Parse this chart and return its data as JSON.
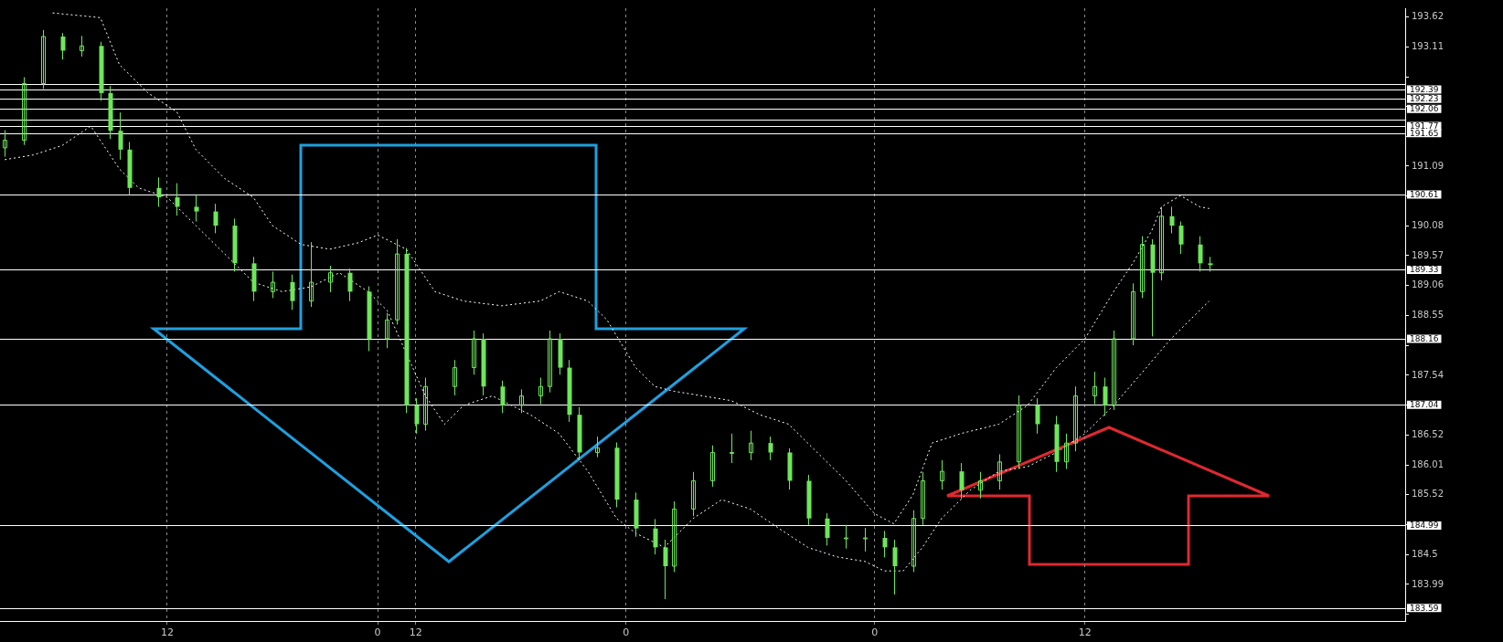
{
  "chart_data": {
    "type": "candlestick",
    "color": "#6ee65a",
    "categories": [
      null,
      null,
      null,
      null,
      null,
      null,
      null,
      null,
      null,
      null,
      null,
      null,
      null,
      null,
      null,
      null,
      null,
      "12",
      null,
      null,
      null,
      null,
      null,
      null,
      null,
      null,
      null,
      null,
      null,
      null,
      null,
      null,
      null,
      null,
      null,
      null,
      null,
      null,
      null,
      "0",
      null,
      null,
      null,
      "12",
      null,
      null,
      null,
      null,
      null,
      null,
      null,
      null,
      null,
      null,
      null,
      null,
      null,
      null,
      null,
      null,
      null,
      null,
      null,
      null,
      null,
      "0",
      null,
      null,
      null,
      null,
      null,
      null,
      null,
      null,
      null,
      null,
      null,
      null,
      null,
      null,
      null,
      null,
      null,
      null,
      null,
      null,
      null,
      null,
      null,
      null,
      null,
      "0",
      null,
      null,
      null,
      null,
      null,
      null,
      null,
      null,
      null,
      null,
      null,
      null,
      null,
      null,
      null,
      null,
      null,
      null,
      null,
      null,
      null,
      "12",
      null,
      null,
      null,
      null,
      null,
      null,
      null,
      null,
      null,
      null,
      null,
      null,
      null,
      null,
      null,
      null,
      null,
      null,
      null,
      null,
      null,
      null,
      null,
      null,
      null,
      null,
      null,
      null,
      null,
      null,
      null,
      null,
      null
    ],
    "ohlc": [
      [
        191.4,
        191.7,
        191.25,
        191.53
      ],
      null,
      [
        191.53,
        192.6,
        191.45,
        192.49
      ],
      null,
      [
        192.49,
        193.4,
        192.4,
        193.29
      ],
      null,
      [
        193.29,
        193.35,
        192.9,
        193.05
      ],
      null,
      [
        193.05,
        193.3,
        192.95,
        193.13
      ],
      null,
      [
        193.13,
        193.2,
        192.2,
        192.33
      ],
      [
        192.33,
        192.45,
        191.55,
        191.69
      ],
      [
        191.69,
        192,
        191.2,
        191.37
      ],
      [
        191.37,
        191.5,
        190.6,
        190.72
      ],
      null,
      null,
      [
        190.72,
        190.9,
        190.4,
        190.56
      ],
      null,
      [
        190.56,
        190.8,
        190.25,
        190.4
      ],
      null,
      [
        190.4,
        190.6,
        190.15,
        190.32
      ],
      null,
      [
        190.32,
        190.45,
        189.95,
        190.08
      ],
      null,
      [
        190.08,
        190.2,
        189.3,
        189.44
      ],
      null,
      [
        189.44,
        189.55,
        188.8,
        188.96
      ],
      null,
      [
        188.96,
        189.3,
        188.85,
        189.12
      ],
      null,
      [
        189.12,
        189.25,
        188.65,
        188.8
      ],
      null,
      [
        188.8,
        189.8,
        188.7,
        189.12
      ],
      null,
      [
        189.12,
        189.4,
        188.95,
        189.28
      ],
      null,
      [
        189.28,
        189.35,
        188.8,
        188.96
      ],
      null,
      [
        188.96,
        189.05,
        187.95,
        188.16
      ],
      null,
      [
        188.16,
        188.6,
        188,
        188.48
      ],
      [
        188.48,
        189.85,
        188.4,
        189.6
      ],
      [
        189.6,
        189.7,
        186.9,
        187.03
      ],
      [
        187.03,
        187.15,
        186.55,
        186.71
      ],
      [
        186.71,
        187.5,
        186.6,
        187.35
      ],
      null,
      null,
      [
        187.35,
        187.8,
        187.2,
        187.67
      ],
      null,
      [
        187.67,
        188.3,
        187.55,
        188.16
      ],
      [
        188.16,
        188.25,
        187.2,
        187.35
      ],
      null,
      [
        187.35,
        187.45,
        186.9,
        187.03
      ],
      null,
      [
        187.03,
        187.3,
        186.9,
        187.19
      ],
      null,
      [
        187.19,
        187.5,
        187.05,
        187.35
      ],
      [
        187.35,
        188.3,
        187.25,
        188.16
      ],
      [
        188.16,
        188.25,
        187.55,
        187.67
      ],
      [
        187.67,
        187.8,
        186.75,
        186.87
      ],
      [
        186.87,
        187,
        186.1,
        186.23
      ],
      null,
      [
        186.23,
        186.5,
        186.15,
        186.31
      ],
      null,
      [
        186.31,
        186.4,
        185.3,
        185.43
      ],
      null,
      [
        185.43,
        185.55,
        184.8,
        184.94
      ],
      null,
      [
        184.94,
        185.1,
        184.5,
        184.62
      ],
      [
        184.62,
        184.75,
        183.74,
        184.3
      ],
      [
        184.3,
        185.4,
        184.2,
        185.27
      ],
      null,
      [
        185.27,
        185.9,
        185.15,
        185.75
      ],
      null,
      [
        185.75,
        186.35,
        185.65,
        186.23
      ],
      null,
      [
        186.23,
        186.55,
        186.05,
        186.23
      ],
      null,
      [
        186.23,
        186.6,
        186.1,
        186.39
      ],
      null,
      [
        186.39,
        186.5,
        186.1,
        186.23
      ],
      null,
      [
        186.23,
        186.3,
        185.6,
        185.75
      ],
      null,
      [
        185.75,
        185.85,
        185,
        185.11
      ],
      null,
      [
        185.11,
        185.2,
        184.65,
        184.78
      ],
      null,
      [
        184.78,
        185,
        184.6,
        184.78
      ],
      null,
      [
        184.78,
        184.95,
        184.55,
        184.78
      ],
      null,
      [
        184.78,
        184.9,
        184.45,
        184.62
      ],
      [
        184.62,
        184.75,
        183.82,
        184.3
      ],
      null,
      [
        184.3,
        185.25,
        184.2,
        185.11
      ],
      [
        185.11,
        185.9,
        185,
        185.75
      ],
      null,
      [
        185.75,
        186.1,
        185.6,
        185.91
      ],
      null,
      [
        185.91,
        186.05,
        185.45,
        185.59
      ],
      null,
      [
        185.59,
        185.9,
        185.45,
        185.75
      ],
      null,
      [
        185.75,
        186.2,
        185.6,
        186.07
      ],
      null,
      [
        186.07,
        187.2,
        185.95,
        187.03
      ],
      null,
      [
        187.03,
        187.15,
        186.55,
        186.71
      ],
      null,
      [
        186.71,
        186.85,
        185.9,
        186.07
      ],
      [
        186.07,
        186.55,
        185.95,
        186.39
      ],
      [
        186.39,
        187.35,
        186.25,
        187.19
      ],
      null,
      [
        187.19,
        187.6,
        187.05,
        187.35
      ],
      [
        187.35,
        187.5,
        186.85,
        187.03
      ],
      [
        187.03,
        188.3,
        186.95,
        188.16
      ],
      null,
      [
        188.16,
        189.1,
        188.05,
        188.96
      ],
      [
        188.96,
        189.9,
        188.85,
        189.76
      ],
      [
        189.76,
        189.85,
        188.2,
        189.28
      ],
      [
        189.28,
        190.4,
        189.15,
        190.24
      ],
      [
        190.24,
        190.4,
        189.95,
        190.08
      ],
      [
        190.08,
        190.15,
        189.6,
        189.76
      ],
      null,
      [
        189.76,
        189.9,
        189.3,
        189.44
      ],
      [
        189.44,
        189.55,
        189.3,
        189.41
      ],
      null,
      null,
      null,
      null,
      null,
      null,
      null,
      null,
      null,
      null,
      null,
      null,
      null,
      null,
      null,
      null,
      null,
      null,
      null,
      null
    ],
    "series": [
      {
        "type": "line",
        "color": "#ffffff",
        "line_style": "dotted",
        "values": [
          null,
          null,
          null,
          null,
          null,
          193.69,
          null,
          null,
          null,
          null,
          193.61,
          null,
          192.81,
          null,
          null,
          192.33,
          null,
          null,
          192.01,
          null,
          191.37,
          null,
          null,
          190.88,
          null,
          null,
          190.56,
          null,
          190.08,
          null,
          null,
          189.76,
          null,
          null,
          189.68,
          null,
          null,
          189.79,
          null,
          189.92,
          null,
          null,
          189.68,
          null,
          null,
          188.96,
          null,
          null,
          188.8,
          null,
          null,
          null,
          188.72,
          null,
          null,
          null,
          188.8,
          null,
          188.96,
          null,
          null,
          188.8,
          null,
          188.48,
          null,
          null,
          187.67,
          null,
          187.35,
          null,
          187.27,
          null,
          null,
          187.19,
          null,
          null,
          187.11,
          null,
          null,
          186.87,
          null,
          null,
          186.71,
          null,
          null,
          186.23,
          null,
          null,
          185.75,
          null,
          null,
          185.19,
          null,
          185.02,
          null,
          185.51,
          null,
          186.39,
          null,
          null,
          186.55,
          null,
          null,
          null,
          186.71,
          null,
          null,
          187.03,
          null,
          null,
          187.67,
          null,
          null,
          188.16,
          null,
          null,
          188.96,
          null,
          189.44,
          null,
          190,
          190.4,
          null,
          190.59,
          null,
          190.4,
          190.37,
          null,
          null,
          null,
          null,
          null,
          null,
          null,
          null,
          null,
          null,
          null,
          null,
          null,
          null,
          null,
          null,
          null,
          null,
          null,
          null
        ]
      },
      {
        "type": "line",
        "color": "#ffffff",
        "line_style": "dotted",
        "values": [
          191.2,
          null,
          null,
          191.28,
          null,
          null,
          191.44,
          null,
          null,
          191.77,
          null,
          null,
          191.04,
          null,
          190.72,
          null,
          null,
          190.56,
          null,
          null,
          190.08,
          null,
          null,
          189.6,
          null,
          null,
          189.12,
          null,
          null,
          188.96,
          null,
          null,
          189.04,
          null,
          null,
          189.28,
          null,
          null,
          188.96,
          null,
          188.64,
          null,
          null,
          null,
          187.19,
          null,
          186.71,
          null,
          187.03,
          null,
          null,
          187.19,
          null,
          null,
          null,
          186.87,
          null,
          null,
          186.55,
          null,
          null,
          185.91,
          null,
          null,
          185.11,
          null,
          184.86,
          null,
          null,
          184.62,
          null,
          null,
          185.11,
          null,
          null,
          185.43,
          null,
          null,
          185.27,
          null,
          null,
          184.94,
          null,
          null,
          184.62,
          null,
          null,
          184.46,
          null,
          null,
          184.38,
          null,
          184.22,
          null,
          184.22,
          null,
          184.62,
          null,
          185.11,
          null,
          null,
          185.59,
          null,
          null,
          185.91,
          null,
          null,
          185.99,
          null,
          null,
          186.23,
          null,
          null,
          186.55,
          null,
          null,
          187.03,
          null,
          null,
          187.59,
          null,
          null,
          188.16,
          null,
          null,
          188.64,
          188.8,
          null,
          null,
          null,
          null,
          null,
          null,
          null,
          null,
          null,
          null,
          null,
          null,
          null,
          null,
          null,
          null,
          null,
          null,
          null,
          null
        ]
      }
    ],
    "ylim": [
      183.37,
      193.77
    ],
    "yticks": [
      {
        "value": 183.49,
        "label": null
      },
      183.99,
      184.5,
      {
        "value": 185.01,
        "label": null
      },
      185.52,
      186.01,
      186.52,
      {
        "value": 187.03,
        "label": null
      },
      187.54,
      {
        "value": 188.04,
        "label": null
      },
      188.55,
      189.06,
      189.57,
      190.08,
      {
        "value": 190.58,
        "label": null
      },
      191.09,
      {
        "value": 191.6,
        "label": null
      },
      {
        "value": 192.1,
        "label": null
      },
      {
        "value": 192.6,
        "label": null
      },
      193.11,
      193.62
    ],
    "grid": "x",
    "ref_lines": [
      {
        "axis": "y",
        "value": 192.49,
        "color": "#ffffff"
      },
      {
        "axis": "y",
        "value": 192.39,
        "label": "192.39",
        "color": "#ffffff"
      },
      {
        "axis": "y",
        "value": 192.23,
        "label": "192.23",
        "color": "#ffffff"
      },
      {
        "axis": "y",
        "value": 192.06,
        "label": "192.06",
        "color": "#ffffff"
      },
      {
        "axis": "y",
        "value": 191.88,
        "color": "#ffffff"
      },
      {
        "axis": "y",
        "value": 191.77,
        "label": "191.77",
        "color": "#ffffff"
      },
      {
        "axis": "y",
        "value": 191.65,
        "label": "191.65",
        "color": "#ffffff"
      },
      {
        "axis": "y",
        "value": 190.61,
        "label": "190.61",
        "color": "#ffffff"
      },
      {
        "axis": "y",
        "value": 189.33,
        "label": "189.33",
        "color": "#ffffff"
      },
      {
        "axis": "y",
        "value": 188.16,
        "label": "188.16",
        "color": "#ffffff"
      },
      {
        "axis": "y",
        "value": 187.04,
        "label": "187.04",
        "color": "#ffffff"
      },
      {
        "axis": "y",
        "value": 184.99,
        "label": "184.99",
        "color": "#ffffff"
      },
      {
        "axis": "y",
        "value": 183.59,
        "label": "183.59",
        "color": "#ffffff"
      }
    ]
  }
}
